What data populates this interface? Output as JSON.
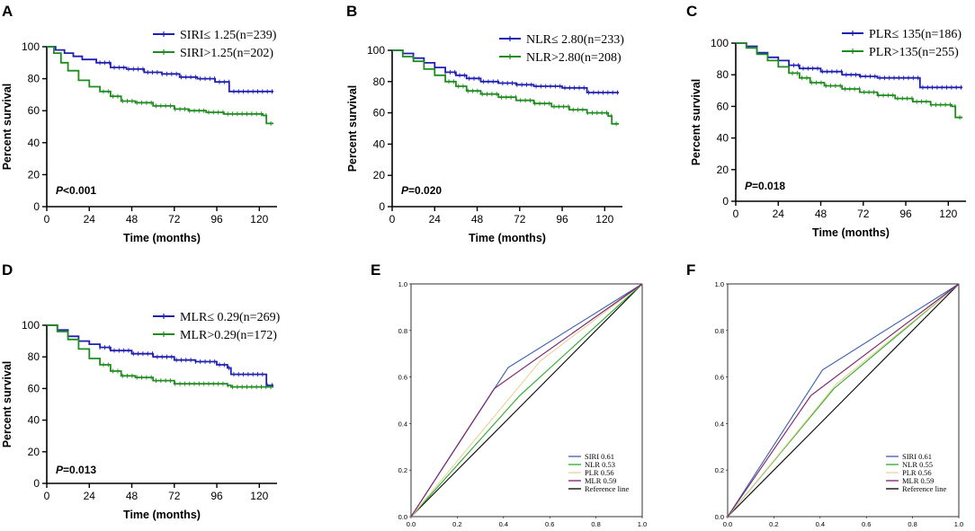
{
  "chart_data": [
    {
      "panel": "A",
      "type": "line",
      "subtype": "kaplan-meier",
      "xlabel": "Time (months)",
      "ylabel": "Percent survival",
      "xlim": [
        0,
        130
      ],
      "ylim": [
        0,
        100
      ],
      "xticks": [
        0,
        24,
        48,
        72,
        96,
        120
      ],
      "yticks": [
        0,
        20,
        40,
        60,
        80,
        100
      ],
      "legend_position": "top-right",
      "pvalue": {
        "label": "P",
        "text": "<0.001"
      },
      "series": [
        {
          "name": "SIRI≤ 1.25(n=239)",
          "color": "#1f1fb4",
          "x": [
            0,
            5,
            10,
            15,
            20,
            28,
            36,
            45,
            55,
            65,
            75,
            85,
            95,
            103,
            115,
            128
          ],
          "y": [
            100,
            98,
            96,
            94,
            92,
            90,
            87,
            86,
            84,
            83,
            81,
            80,
            78,
            72,
            72,
            72
          ]
        },
        {
          "name": "SIRI>1.25(n=202)",
          "color": "#1f8c1f",
          "x": [
            0,
            4,
            8,
            12,
            18,
            24,
            30,
            36,
            42,
            50,
            60,
            72,
            80,
            90,
            100,
            110,
            122,
            124,
            128
          ],
          "y": [
            100,
            96,
            90,
            85,
            79,
            75,
            72,
            69,
            66,
            65,
            63,
            61,
            60,
            59,
            58,
            58,
            57,
            52,
            52
          ]
        }
      ]
    },
    {
      "panel": "B",
      "type": "line",
      "subtype": "kaplan-meier",
      "xlabel": "Time (months)",
      "ylabel": "Percent survival",
      "xlim": [
        0,
        130
      ],
      "ylim": [
        0,
        100
      ],
      "xticks": [
        0,
        24,
        48,
        72,
        96,
        120
      ],
      "yticks": [
        0,
        20,
        40,
        60,
        80,
        100
      ],
      "legend_position": "top-right",
      "pvalue": {
        "label": "P",
        "text": "=0.020"
      },
      "series": [
        {
          "name": "NLR≤ 2.80(n=233)",
          "color": "#1f1fb4",
          "x": [
            0,
            6,
            12,
            18,
            24,
            30,
            36,
            42,
            50,
            60,
            70,
            80,
            96,
            110,
            128
          ],
          "y": [
            100,
            98,
            95,
            92,
            89,
            86,
            84,
            82,
            80,
            79,
            78,
            77,
            76,
            73,
            73
          ]
        },
        {
          "name": "NLR>2.80(n=208)",
          "color": "#1f8c1f",
          "x": [
            0,
            6,
            12,
            18,
            24,
            30,
            36,
            42,
            50,
            60,
            70,
            80,
            90,
            100,
            110,
            122,
            124,
            128
          ],
          "y": [
            100,
            96,
            93,
            88,
            84,
            80,
            77,
            74,
            72,
            70,
            68,
            66,
            64,
            62,
            60,
            58,
            53,
            53
          ]
        }
      ]
    },
    {
      "panel": "C",
      "type": "line",
      "subtype": "kaplan-meier",
      "xlabel": "Time (months)",
      "ylabel": "Percent survival",
      "xlim": [
        0,
        130
      ],
      "ylim": [
        0,
        100
      ],
      "xticks": [
        0,
        24,
        48,
        72,
        96,
        120
      ],
      "yticks": [
        0,
        20,
        40,
        60,
        80,
        100
      ],
      "legend_position": "top-right",
      "pvalue": {
        "label": "P",
        "text": "=0.018"
      },
      "series": [
        {
          "name": "PLR≤ 135(n=186)",
          "color": "#1f1fb4",
          "x": [
            0,
            6,
            12,
            18,
            24,
            30,
            36,
            48,
            60,
            70,
            80,
            95,
            102,
            104,
            128
          ],
          "y": [
            100,
            98,
            94,
            91,
            89,
            86,
            84,
            82,
            80,
            79,
            78,
            78,
            78,
            72,
            72
          ]
        },
        {
          "name": "PLR>135(n=255)",
          "color": "#1f8c1f",
          "x": [
            0,
            6,
            12,
            18,
            24,
            30,
            36,
            42,
            50,
            60,
            70,
            80,
            90,
            100,
            110,
            122,
            124,
            128
          ],
          "y": [
            100,
            97,
            93,
            89,
            85,
            81,
            78,
            75,
            73,
            71,
            69,
            67,
            65,
            63,
            61,
            60,
            53,
            53
          ]
        }
      ]
    },
    {
      "panel": "D",
      "type": "line",
      "subtype": "kaplan-meier",
      "xlabel": "Time (months)",
      "ylabel": "Percent survival",
      "xlim": [
        0,
        130
      ],
      "ylim": [
        0,
        100
      ],
      "xticks": [
        0,
        24,
        48,
        72,
        96,
        120
      ],
      "yticks": [
        0,
        20,
        40,
        60,
        80,
        100
      ],
      "legend_position": "top-right",
      "pvalue": {
        "label": "P",
        "text": "=0.013"
      },
      "series": [
        {
          "name": "MLR≤ 0.29(n=269)",
          "color": "#1f1fb4",
          "x": [
            0,
            6,
            12,
            18,
            24,
            30,
            36,
            48,
            60,
            72,
            84,
            96,
            102,
            104,
            120,
            124,
            128
          ],
          "y": [
            100,
            97,
            93,
            90,
            88,
            86,
            84,
            82,
            80,
            78,
            77,
            75,
            73,
            69,
            69,
            62,
            62
          ]
        },
        {
          "name": "MLR>0.29(n=172)",
          "color": "#1f8c1f",
          "x": [
            0,
            6,
            12,
            18,
            24,
            30,
            36,
            42,
            50,
            60,
            72,
            84,
            96,
            102,
            104,
            128
          ],
          "y": [
            100,
            96,
            91,
            85,
            79,
            75,
            71,
            68,
            67,
            65,
            63,
            63,
            63,
            62,
            61,
            61
          ]
        }
      ]
    },
    {
      "panel": "E",
      "type": "line",
      "subtype": "roc",
      "xlim": [
        0,
        1
      ],
      "ylim": [
        0,
        1
      ],
      "xticks": [
        "0.0",
        "0.2",
        "0.4",
        "0.6",
        "0.8",
        "1.0"
      ],
      "yticks": [
        "0.0",
        "0.2",
        "0.4",
        "0.6",
        "0.8",
        "1.0"
      ],
      "legend_position": "bottom-right",
      "series": [
        {
          "name": "SIRI 0.61",
          "color": "#3b5fae",
          "x": [
            0,
            0.42,
            1
          ],
          "y": [
            0,
            0.64,
            1
          ]
        },
        {
          "name": "NLR 0.53",
          "color": "#2bab2b",
          "x": [
            0,
            0.47,
            1
          ],
          "y": [
            0,
            0.52,
            1
          ]
        },
        {
          "name": "PLR 0.56",
          "color": "#e8d39a",
          "x": [
            0,
            0.56,
            1
          ],
          "y": [
            0,
            0.67,
            1
          ]
        },
        {
          "name": "MLR 0.59",
          "color": "#7a1f6e",
          "x": [
            0,
            0.36,
            1
          ],
          "y": [
            0,
            0.55,
            1
          ]
        },
        {
          "name": "Reference line",
          "color": "#000000",
          "x": [
            0,
            1
          ],
          "y": [
            0,
            1
          ]
        }
      ]
    },
    {
      "panel": "F",
      "type": "line",
      "subtype": "roc",
      "xlim": [
        0,
        1
      ],
      "ylim": [
        0,
        1
      ],
      "xticks": [
        "0.0",
        "0.2",
        "0.4",
        "0.6",
        "0.8",
        "1.0"
      ],
      "yticks": [
        "0.0",
        "0.2",
        "0.4",
        "0.6",
        "0.8",
        "1.0"
      ],
      "legend_position": "bottom-right",
      "series": [
        {
          "name": "SIRI 0.61",
          "color": "#3b5fae",
          "x": [
            0,
            0.41,
            1
          ],
          "y": [
            0,
            0.63,
            1
          ]
        },
        {
          "name": "NLR 0.55",
          "color": "#2bab2b",
          "x": [
            0,
            0.46,
            1
          ],
          "y": [
            0,
            0.55,
            1
          ]
        },
        {
          "name": "PLR 0.56",
          "color": "#e8d39a",
          "x": [
            0,
            0.47,
            1
          ],
          "y": [
            0,
            0.57,
            1
          ]
        },
        {
          "name": "MLR 0.59",
          "color": "#7a1f6e",
          "x": [
            0,
            0.36,
            1
          ],
          "y": [
            0,
            0.52,
            1
          ]
        },
        {
          "name": "Reference line",
          "color": "#000000",
          "x": [
            0,
            1
          ],
          "y": [
            0,
            1
          ]
        }
      ]
    }
  ]
}
